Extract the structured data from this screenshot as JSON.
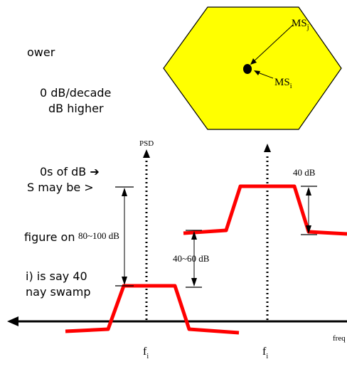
{
  "slide_text_fragments": [
    "ower",
    "0 dB/decade",
    " dB higher",
    "0s of dB ➔",
    "S may be >",
    "figure on",
    "i) is say 40",
    "nay swamp"
  ],
  "hexagon": {
    "fill": "#ffff00",
    "label_j": "MS",
    "label_j_sub": "j",
    "label_i": "MS",
    "label_i_sub": "i"
  },
  "psd_axis_label": "PSD",
  "labels": {
    "big_gap": "80~100 dB",
    "mid_gap": "40~60 dB",
    "right_gap": "40 dB"
  },
  "freq_labels": [
    {
      "main": "f",
      "sub": "i"
    },
    {
      "main": "f",
      "sub": "i"
    }
  ],
  "x_axis_label": "freq",
  "colors": {
    "spectrum": "#ff0000",
    "axis": "#000000"
  }
}
